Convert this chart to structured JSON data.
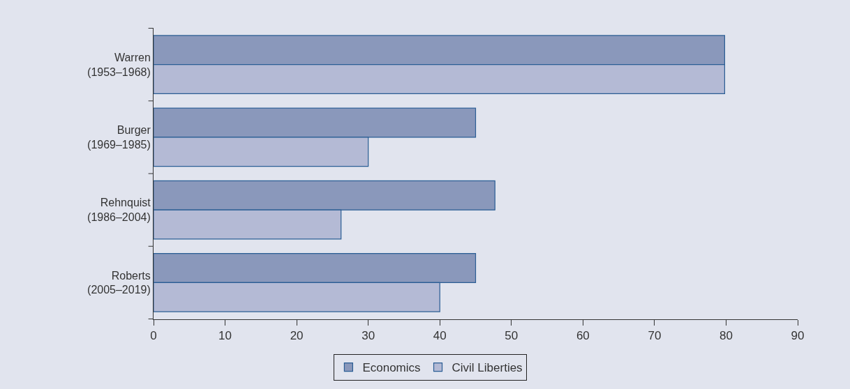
{
  "chart_data": {
    "type": "bar",
    "orientation": "horizontal",
    "categories": [
      "Warren\n(1953–1968)",
      "Burger\n(1969–1985)",
      "Rehnquist\n(1986–2004)",
      "Roberts\n(2005–2019)"
    ],
    "series": [
      {
        "name": "Economics",
        "color": "#8a98bb",
        "values": [
          79.8,
          45,
          47.7,
          45
        ]
      },
      {
        "name": "Civil Liberties",
        "color": "#b4bad5",
        "values": [
          79.8,
          30,
          26.2,
          40
        ]
      }
    ],
    "xlim": [
      0,
      90
    ],
    "xticks": [
      0,
      10,
      20,
      30,
      40,
      50,
      60,
      70,
      80,
      90
    ],
    "grid": false,
    "legend": "bottom"
  }
}
